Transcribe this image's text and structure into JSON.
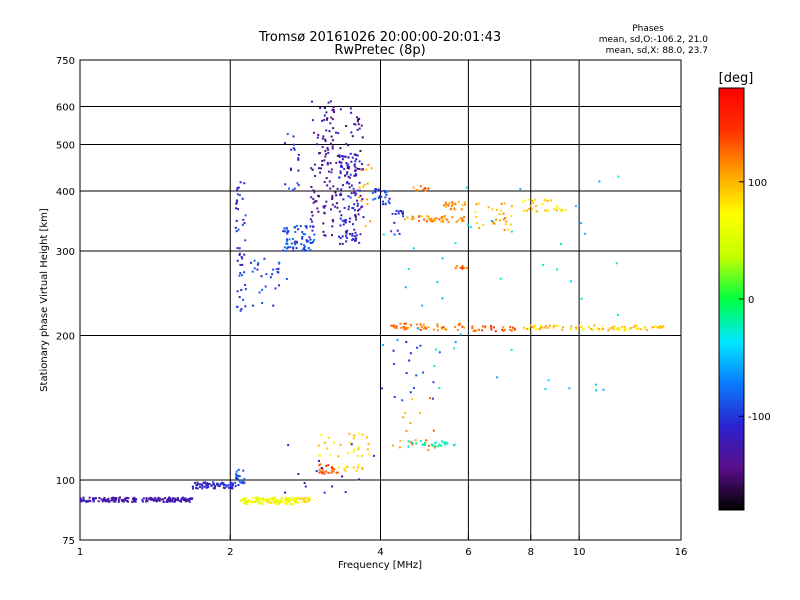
{
  "chart_data": {
    "type": "scatter",
    "title": "Tromsø 20161026 20:00:00-20:01:43",
    "subtitle": "RwPretec (8p)",
    "xlabel": "Frequency [MHz]",
    "ylabel": "Stationary phase Virtual Height [km]",
    "x_scale": "log",
    "y_scale": "log",
    "xlim": [
      1,
      16
    ],
    "ylim": [
      75,
      750
    ],
    "x_ticks": [
      1,
      2,
      4,
      6,
      8,
      10,
      16
    ],
    "y_ticks": [
      75,
      100,
      200,
      300,
      400,
      500,
      600,
      750
    ],
    "x_grid": [
      2,
      4,
      6,
      8,
      10
    ],
    "y_grid": [
      100,
      200,
      300,
      400,
      500,
      600
    ],
    "info": {
      "header": "Phases",
      "line1": "mean, sd,O:-106.2, 21.0",
      "line2": "mean, sd,X:  88.0, 23.7"
    },
    "colorbar": {
      "label": "[deg]",
      "range": [
        -180,
        180
      ],
      "ticks": [
        100,
        0,
        -100
      ],
      "colors": [
        "#000000",
        "#5a0f8a",
        "#2b22d0",
        "#0a7cff",
        "#00e8ff",
        "#00ff40",
        "#c4ff00",
        "#ffff00",
        "#ffa000",
        "#ff3000",
        "#ff0000"
      ]
    },
    "clusters": [
      {
        "x": [
          1.0,
          1.68
        ],
        "y": [
          90,
          92
        ],
        "phase": -125,
        "n": 190
      },
      {
        "x": [
          1.68,
          2.05
        ],
        "y": [
          96,
          99
        ],
        "phase": -110,
        "n": 70
      },
      {
        "x": [
          2.05,
          2.15
        ],
        "y": [
          97,
          106
        ],
        "phase": -90,
        "n": 20
      },
      {
        "x": [
          2.1,
          2.75
        ],
        "y": [
          89,
          92
        ],
        "phase": 65,
        "n": 120
      },
      {
        "x": [
          2.75,
          2.9
        ],
        "y": [
          90,
          92
        ],
        "phase": 85,
        "n": 15
      },
      {
        "x": [
          2.05,
          2.15
        ],
        "y": [
          225,
          420
        ],
        "phase": -105,
        "n": 45
      },
      {
        "x": [
          2.1,
          2.6
        ],
        "y": [
          230,
          290
        ],
        "phase": -95,
        "n": 30
      },
      {
        "x": [
          2.55,
          2.95
        ],
        "y": [
          300,
          340
        ],
        "phase": -90,
        "n": 70
      },
      {
        "x": [
          2.55,
          2.75
        ],
        "y": [
          400,
          530
        ],
        "phase": -100,
        "n": 20
      },
      {
        "x": [
          2.9,
          3.25
        ],
        "y": [
          320,
          620
        ],
        "phase": -135,
        "n": 90
      },
      {
        "x": [
          3.3,
          3.65
        ],
        "y": [
          310,
          480
        ],
        "phase": -115,
        "n": 120
      },
      {
        "x": [
          3.05,
          3.7
        ],
        "y": [
          330,
          600
        ],
        "phase": -140,
        "n": 70
      },
      {
        "x": [
          3.6,
          3.85
        ],
        "y": [
          330,
          460
        ],
        "phase": 110,
        "n": 14
      },
      {
        "x": [
          3.85,
          4.2
        ],
        "y": [
          375,
          405
        ],
        "phase": -95,
        "n": 25
      },
      {
        "x": [
          4.2,
          4.45
        ],
        "y": [
          320,
          365
        ],
        "phase": -100,
        "n": 15
      },
      {
        "x": [
          4.45,
          5.9
        ],
        "y": [
          345,
          355
        ],
        "phase": 115,
        "n": 45
      },
      {
        "x": [
          5.3,
          6.0
        ],
        "y": [
          365,
          380
        ],
        "phase": 110,
        "n": 20
      },
      {
        "x": [
          4.6,
          5.0
        ],
        "y": [
          400,
          410
        ],
        "phase": 125,
        "n": 10
      },
      {
        "x": [
          6.2,
          7.4
        ],
        "y": [
          330,
          380
        ],
        "phase": 100,
        "n": 30
      },
      {
        "x": [
          7.7,
          9.4
        ],
        "y": [
          360,
          385
        ],
        "phase": 85,
        "n": 30
      },
      {
        "x": [
          5.6,
          6.0
        ],
        "y": [
          275,
          280
        ],
        "phase": 130,
        "n": 8
      },
      {
        "x": [
          4.2,
          6.0
        ],
        "y": [
          205,
          212
        ],
        "phase": 120,
        "n": 45
      },
      {
        "x": [
          6.0,
          7.5
        ],
        "y": [
          204,
          210
        ],
        "phase": 130,
        "n": 25
      },
      {
        "x": [
          7.5,
          14.8
        ],
        "y": [
          205,
          210
        ],
        "phase": 90,
        "n": 80
      },
      {
        "x": [
          4.0,
          5.3
        ],
        "y": [
          140,
          195
        ],
        "phase": -100,
        "n": 18
      },
      {
        "x": [
          4.2,
          5.2
        ],
        "y": [
          115,
          150
        ],
        "phase": 110,
        "n": 18
      },
      {
        "x": [
          4.5,
          5.7
        ],
        "y": [
          117,
          121
        ],
        "phase": -20,
        "n": 25
      },
      {
        "x": [
          3.0,
          3.3
        ],
        "y": [
          103,
          108
        ],
        "phase": 135,
        "n": 25
      },
      {
        "x": [
          3.0,
          3.8
        ],
        "y": [
          112,
          125
        ],
        "phase": 85,
        "n": 30
      },
      {
        "x": [
          3.3,
          3.7
        ],
        "y": [
          103,
          108
        ],
        "phase": 80,
        "n": 12
      },
      {
        "x": [
          2.4,
          4.1
        ],
        "y": [
          92,
          125
        ],
        "phase": -120,
        "n": 15
      },
      {
        "x": [
          4.0,
          12.0
        ],
        "y": [
          150,
          460
        ],
        "phase": -40,
        "n": 45
      }
    ]
  }
}
